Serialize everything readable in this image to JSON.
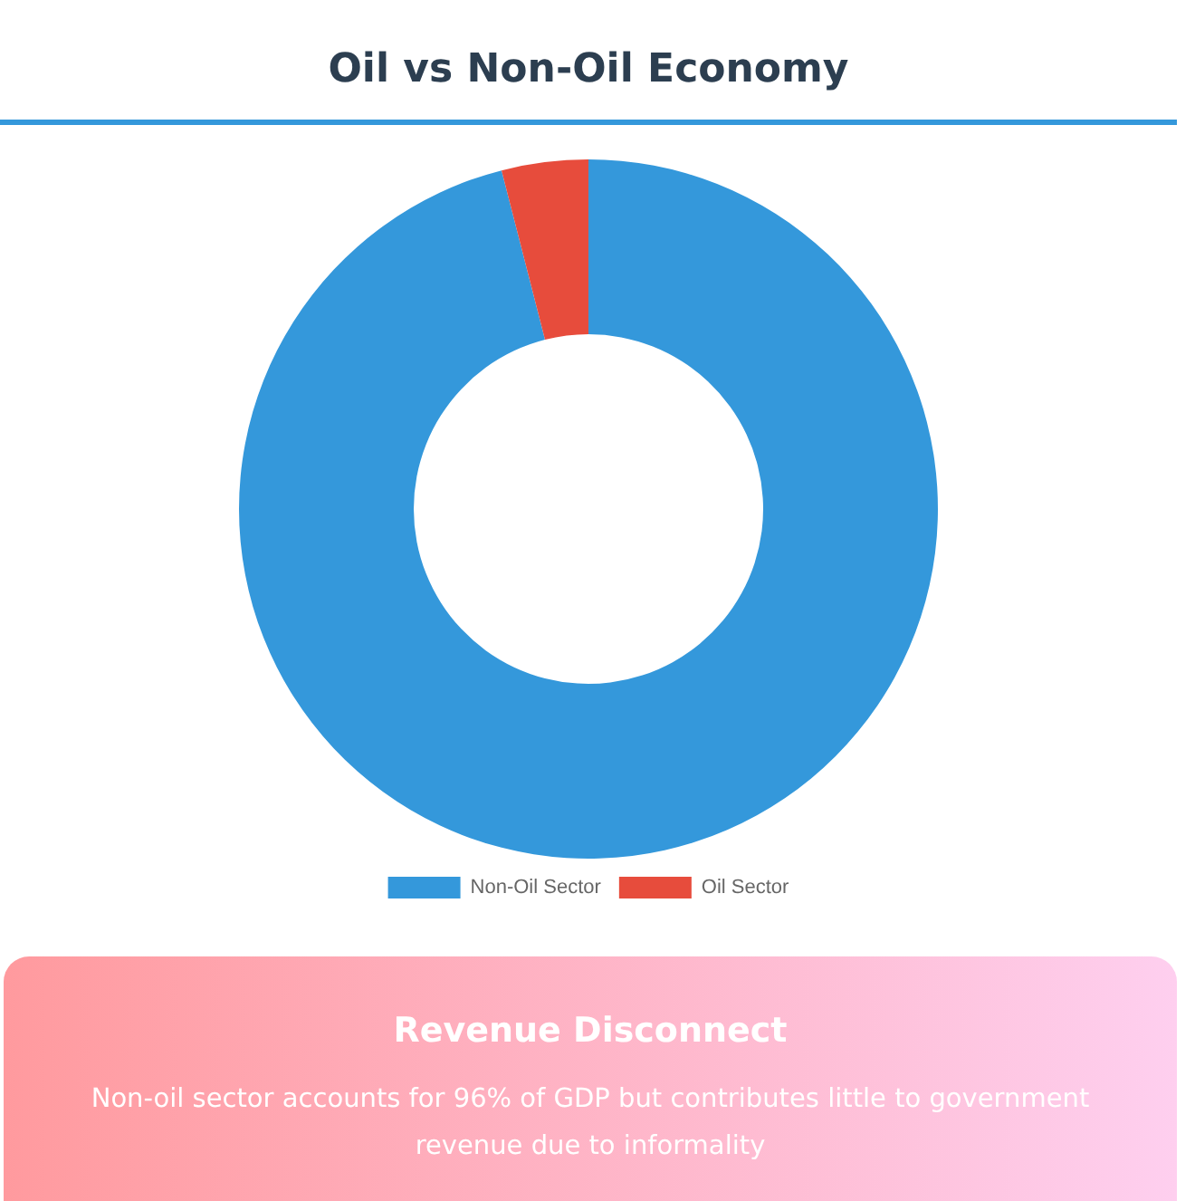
{
  "chart_data": {
    "type": "donut",
    "title": "Oil vs Non-Oil Economy",
    "categories": [
      "Non-Oil Sector",
      "Oil Sector"
    ],
    "values": [
      96,
      4
    ],
    "colors": [
      "#3498db",
      "#e74c3c"
    ],
    "legend": "bottom",
    "annotations": [
      "Revenue Disconnect",
      "Non-oil sector accounts for 96% of GDP but contributes little to government revenue due to informality"
    ]
  }
}
